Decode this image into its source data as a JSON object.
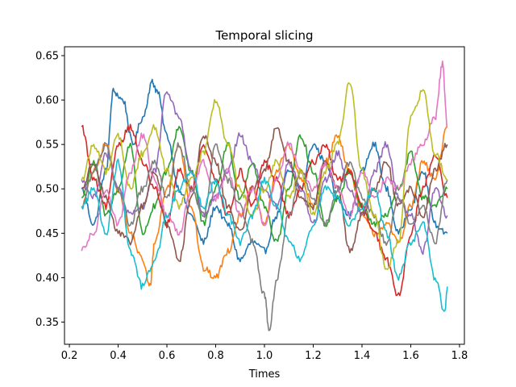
{
  "chart_data": {
    "type": "line",
    "title": "Temporal slicing",
    "xlabel": "Times",
    "ylabel": "",
    "xlim": [
      0.18,
      1.82
    ],
    "ylim": [
      0.325,
      0.66
    ],
    "xticks": [
      0.2,
      0.4,
      0.6,
      0.8,
      1.0,
      1.2,
      1.4,
      1.6,
      1.8
    ],
    "xtick_labels": [
      "0.2",
      "0.4",
      "0.6",
      "0.8",
      "1.0",
      "1.2",
      "1.4",
      "1.6",
      "1.8"
    ],
    "yticks": [
      0.35,
      0.4,
      0.45,
      0.5,
      0.55,
      0.6,
      0.65
    ],
    "ytick_labels": [
      "0.35",
      "0.40",
      "0.45",
      "0.50",
      "0.55",
      "0.60",
      "0.65"
    ],
    "grid": false,
    "legend": "none",
    "series": [
      {
        "color": "#1f77b4",
        "x": [
          0.25,
          0.3,
          0.35,
          0.38,
          0.42,
          0.46,
          0.5,
          0.54,
          0.56,
          0.6,
          0.65,
          0.7,
          0.75,
          0.8,
          0.85,
          0.9,
          0.95,
          1.0,
          1.05,
          1.1,
          1.15,
          1.2,
          1.25,
          1.3,
          1.35,
          1.4,
          1.45,
          1.5,
          1.55,
          1.6,
          1.65,
          1.7,
          1.75
        ],
        "y": [
          0.5,
          0.46,
          0.52,
          0.61,
          0.6,
          0.55,
          0.58,
          0.62,
          0.61,
          0.56,
          0.5,
          0.47,
          0.44,
          0.48,
          0.46,
          0.42,
          0.44,
          0.43,
          0.47,
          0.52,
          0.5,
          0.55,
          0.53,
          0.49,
          0.47,
          0.52,
          0.55,
          0.5,
          0.45,
          0.48,
          0.52,
          0.46,
          0.45
        ]
      },
      {
        "color": "#ff7f0e",
        "x": [
          0.25,
          0.3,
          0.35,
          0.4,
          0.45,
          0.5,
          0.53,
          0.55,
          0.6,
          0.65,
          0.7,
          0.75,
          0.8,
          0.85,
          0.9,
          0.95,
          1.0,
          1.05,
          1.1,
          1.15,
          1.2,
          1.25,
          1.3,
          1.35,
          1.4,
          1.45,
          1.5,
          1.55,
          1.6,
          1.65,
          1.7,
          1.75
        ],
        "y": [
          0.48,
          0.52,
          0.55,
          0.5,
          0.45,
          0.42,
          0.39,
          0.44,
          0.5,
          0.55,
          0.48,
          0.41,
          0.4,
          0.43,
          0.47,
          0.5,
          0.46,
          0.52,
          0.55,
          0.51,
          0.48,
          0.53,
          0.56,
          0.52,
          0.47,
          0.45,
          0.46,
          0.44,
          0.48,
          0.53,
          0.51,
          0.57
        ]
      },
      {
        "color": "#2ca02c",
        "x": [
          0.25,
          0.3,
          0.35,
          0.4,
          0.45,
          0.5,
          0.55,
          0.6,
          0.65,
          0.7,
          0.75,
          0.8,
          0.85,
          0.9,
          0.95,
          1.0,
          1.05,
          1.1,
          1.15,
          1.2,
          1.25,
          1.3,
          1.35,
          1.4,
          1.45,
          1.5,
          1.55,
          1.6,
          1.65,
          1.7,
          1.75
        ],
        "y": [
          0.49,
          0.53,
          0.47,
          0.5,
          0.55,
          0.45,
          0.48,
          0.52,
          0.57,
          0.52,
          0.46,
          0.5,
          0.55,
          0.49,
          0.53,
          0.48,
          0.44,
          0.5,
          0.56,
          0.52,
          0.46,
          0.49,
          0.52,
          0.48,
          0.46,
          0.47,
          0.5,
          0.54,
          0.49,
          0.48,
          0.5
        ]
      },
      {
        "color": "#d62728",
        "x": [
          0.25,
          0.3,
          0.35,
          0.4,
          0.45,
          0.5,
          0.55,
          0.6,
          0.65,
          0.7,
          0.75,
          0.8,
          0.85,
          0.9,
          0.95,
          1.0,
          1.05,
          1.1,
          1.15,
          1.2,
          1.25,
          1.3,
          1.35,
          1.4,
          1.45,
          1.5,
          1.55,
          1.6,
          1.65,
          1.7,
          1.75
        ],
        "y": [
          0.57,
          0.51,
          0.48,
          0.55,
          0.57,
          0.53,
          0.5,
          0.46,
          0.52,
          0.5,
          0.55,
          0.51,
          0.47,
          0.52,
          0.48,
          0.53,
          0.51,
          0.47,
          0.5,
          0.53,
          0.55,
          0.51,
          0.52,
          0.48,
          0.45,
          0.42,
          0.38,
          0.45,
          0.5,
          0.54,
          0.49
        ]
      },
      {
        "color": "#9467bd",
        "x": [
          0.25,
          0.3,
          0.35,
          0.4,
          0.45,
          0.5,
          0.55,
          0.6,
          0.65,
          0.7,
          0.75,
          0.8,
          0.85,
          0.9,
          0.95,
          1.0,
          1.05,
          1.1,
          1.15,
          1.2,
          1.25,
          1.3,
          1.35,
          1.4,
          1.45,
          1.5,
          1.55,
          1.6,
          1.65,
          1.7,
          1.75
        ],
        "y": [
          0.51,
          0.49,
          0.54,
          0.5,
          0.47,
          0.48,
          0.52,
          0.61,
          0.58,
          0.52,
          0.47,
          0.49,
          0.52,
          0.56,
          0.53,
          0.5,
          0.48,
          0.53,
          0.5,
          0.46,
          0.51,
          0.54,
          0.5,
          0.47,
          0.52,
          0.55,
          0.49,
          0.47,
          0.43,
          0.5,
          0.47
        ]
      },
      {
        "color": "#8c564b",
        "x": [
          0.25,
          0.3,
          0.35,
          0.4,
          0.45,
          0.5,
          0.55,
          0.6,
          0.65,
          0.7,
          0.75,
          0.8,
          0.85,
          0.9,
          0.95,
          1.0,
          1.05,
          1.1,
          1.15,
          1.2,
          1.25,
          1.3,
          1.35,
          1.4,
          1.45,
          1.5,
          1.55,
          1.6,
          1.65,
          1.7,
          1.75
        ],
        "y": [
          0.5,
          0.53,
          0.49,
          0.45,
          0.44,
          0.48,
          0.52,
          0.46,
          0.42,
          0.49,
          0.56,
          0.53,
          0.48,
          0.45,
          0.5,
          0.52,
          0.57,
          0.53,
          0.49,
          0.48,
          0.53,
          0.5,
          0.43,
          0.47,
          0.5,
          0.53,
          0.48,
          0.5,
          0.47,
          0.52,
          0.55
        ]
      },
      {
        "color": "#e377c2",
        "x": [
          0.25,
          0.3,
          0.35,
          0.4,
          0.45,
          0.5,
          0.55,
          0.6,
          0.65,
          0.7,
          0.75,
          0.8,
          0.85,
          0.9,
          0.95,
          1.0,
          1.05,
          1.1,
          1.15,
          1.2,
          1.25,
          1.3,
          1.35,
          1.4,
          1.45,
          1.5,
          1.55,
          1.6,
          1.65,
          1.7,
          1.73,
          1.75
        ],
        "y": [
          0.43,
          0.45,
          0.5,
          0.46,
          0.52,
          0.56,
          0.51,
          0.47,
          0.45,
          0.5,
          0.53,
          0.49,
          0.52,
          0.47,
          0.5,
          0.46,
          0.51,
          0.55,
          0.52,
          0.5,
          0.53,
          0.5,
          0.47,
          0.52,
          0.49,
          0.51,
          0.5,
          0.53,
          0.55,
          0.58,
          0.64,
          0.57
        ]
      },
      {
        "color": "#7f7f7f",
        "x": [
          0.25,
          0.3,
          0.35,
          0.4,
          0.45,
          0.5,
          0.55,
          0.6,
          0.65,
          0.7,
          0.75,
          0.8,
          0.85,
          0.9,
          0.95,
          1.0,
          1.02,
          1.05,
          1.1,
          1.15,
          1.2,
          1.25,
          1.3,
          1.35,
          1.4,
          1.45,
          1.5,
          1.55,
          1.6,
          1.65,
          1.7,
          1.75
        ],
        "y": [
          0.48,
          0.52,
          0.55,
          0.5,
          0.46,
          0.5,
          0.53,
          0.49,
          0.55,
          0.5,
          0.47,
          0.55,
          0.51,
          0.48,
          0.44,
          0.38,
          0.34,
          0.4,
          0.47,
          0.52,
          0.49,
          0.46,
          0.5,
          0.53,
          0.49,
          0.47,
          0.44,
          0.49,
          0.46,
          0.48,
          0.44,
          0.51
        ]
      },
      {
        "color": "#bcbd22",
        "x": [
          0.25,
          0.3,
          0.35,
          0.4,
          0.45,
          0.5,
          0.55,
          0.6,
          0.65,
          0.7,
          0.75,
          0.8,
          0.85,
          0.9,
          0.95,
          1.0,
          1.05,
          1.1,
          1.15,
          1.2,
          1.25,
          1.3,
          1.35,
          1.4,
          1.45,
          1.5,
          1.55,
          1.6,
          1.65,
          1.7,
          1.75
        ],
        "y": [
          0.51,
          0.55,
          0.52,
          0.56,
          0.5,
          0.54,
          0.57,
          0.52,
          0.48,
          0.51,
          0.54,
          0.6,
          0.55,
          0.5,
          0.47,
          0.5,
          0.53,
          0.49,
          0.52,
          0.47,
          0.52,
          0.55,
          0.62,
          0.52,
          0.47,
          0.41,
          0.44,
          0.58,
          0.61,
          0.54,
          0.51
        ]
      },
      {
        "color": "#17becf",
        "x": [
          0.25,
          0.3,
          0.35,
          0.4,
          0.45,
          0.5,
          0.55,
          0.6,
          0.65,
          0.7,
          0.75,
          0.8,
          0.85,
          0.9,
          0.95,
          1.0,
          1.05,
          1.1,
          1.15,
          1.2,
          1.25,
          1.3,
          1.35,
          1.4,
          1.45,
          1.5,
          1.55,
          1.6,
          1.65,
          1.7,
          1.74,
          1.75
        ],
        "y": [
          0.48,
          0.5,
          0.45,
          0.53,
          0.43,
          0.39,
          0.42,
          0.47,
          0.5,
          0.52,
          0.48,
          0.51,
          0.47,
          0.44,
          0.47,
          0.51,
          0.48,
          0.44,
          0.42,
          0.46,
          0.5,
          0.49,
          0.46,
          0.48,
          0.5,
          0.45,
          0.4,
          0.44,
          0.46,
          0.4,
          0.36,
          0.39
        ]
      }
    ]
  }
}
